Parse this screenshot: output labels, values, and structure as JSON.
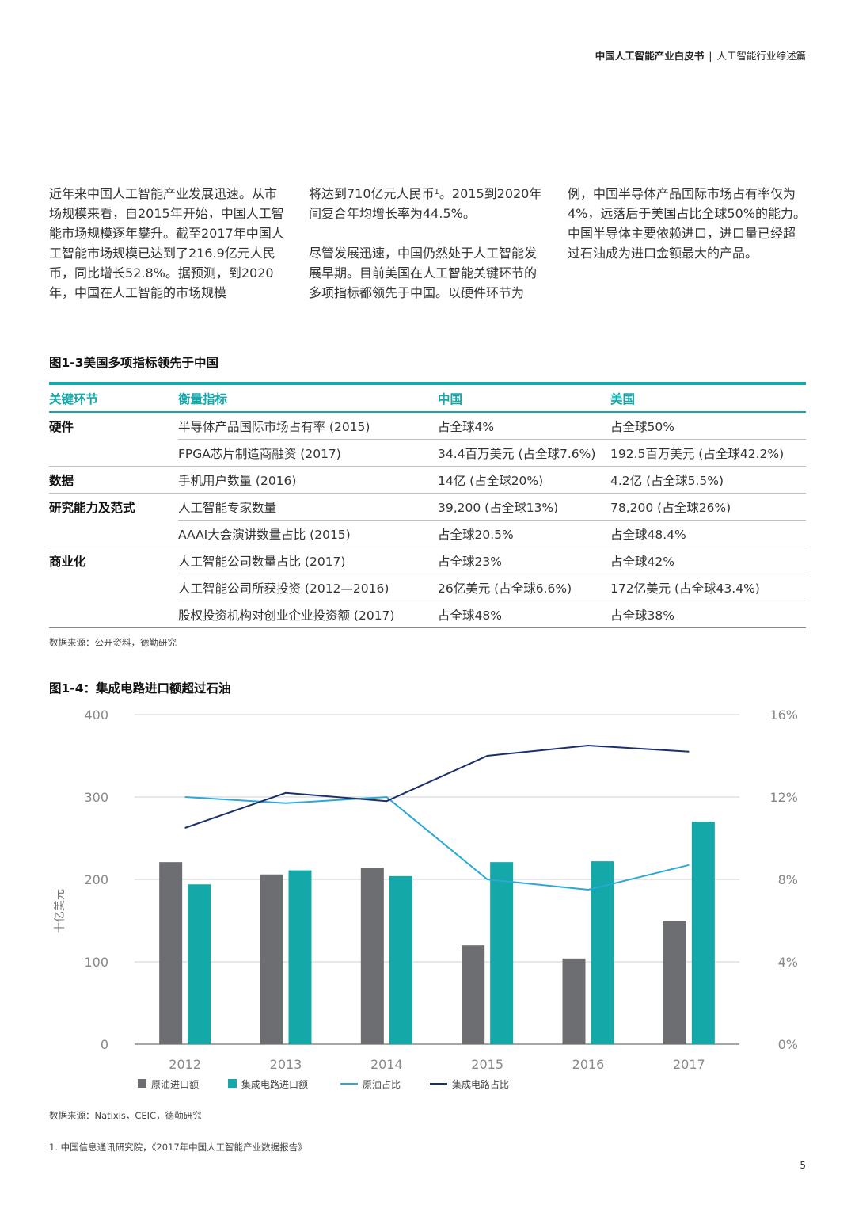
{
  "header": {
    "bold": "中国人工智能产业白皮书",
    "separator": "|",
    "section": "人工智能行业综述篇"
  },
  "body_text": {
    "col1": [
      "近年来中国人工智能产业发展迅速。从市场规模来看，自2015年开始，中国人工智能市场规模逐年攀升。截至2017年中国人工智能市场规模已达到了216.9亿元人民币，同比增长52.8%。据预测，到2020年，中国在人工智能的市场规模"
    ],
    "col2_p1_pre": "将达到710亿元人民币",
    "col2_p1_sup": "1",
    "col2_p1_post": "。2015到2020年间复合年均增长率为44.5%。",
    "col2_p2": "尽管发展迅速，中国仍然处于人工智能发展早期。目前美国在人工智能关键环节的多项指标都领先于中国。以硬件环节为",
    "col3": "例，中国半导体产品国际市场占有率仅为4%，远落后于美国占比全球50%的能力。中国半导体主要依赖进口，进口量已经超过石油成为进口金额最大的产品。"
  },
  "table_figure": {
    "title": "图1-3美国多项指标领先于中国",
    "headers": [
      "关键环节",
      "衡量指标",
      "中国",
      "美国"
    ],
    "rows": [
      {
        "category": "硬件",
        "metric": "半导体产品国际市场占有率 (2015)",
        "china": "占全球4%",
        "usa": "占全球50%"
      },
      {
        "category": "",
        "metric": "FPGA芯片制造商融资 (2017)",
        "china": "34.4百万美元 (占全球7.6%)",
        "usa": "192.5百万美元 (占全球42.2%)"
      },
      {
        "category": "数据",
        "metric": "手机用户数量 (2016)",
        "china": "14亿 (占全球20%)",
        "usa": "4.2亿 (占全球5.5%)"
      },
      {
        "category": "研究能力及范式",
        "metric": "人工智能专家数量",
        "china": "39,200 (占全球13%)",
        "usa": "78,200 (占全球26%)"
      },
      {
        "category": "",
        "metric": "AAAI大会演讲数量占比 (2015)",
        "china": "占全球20.5%",
        "usa": "占全球48.4%"
      },
      {
        "category": "商业化",
        "metric": "人工智能公司数量占比 (2017)",
        "china": "占全球23%",
        "usa": "占全球42%"
      },
      {
        "category": "",
        "metric": "人工智能公司所获投资 (2012—2016)",
        "china": "26亿美元 (占全球6.6%)",
        "usa": "172亿美元 (占全球43.4%)"
      },
      {
        "category": "",
        "metric": "股权投资机构对创业企业投资额 (2017)",
        "china": "占全球48%",
        "usa": "占全球38%"
      }
    ],
    "source": "数据来源：公开资料，德勤研究"
  },
  "chart_data": {
    "type": "bar",
    "title": "图1-4：集成电路进口额超过石油",
    "categories": [
      "2012",
      "2013",
      "2014",
      "2015",
      "2016",
      "2017"
    ],
    "ylabel": "十亿美元",
    "ylim": [
      0,
      400
    ],
    "yticks": [
      "0",
      "100",
      "200",
      "300",
      "400"
    ],
    "y2lim": [
      0,
      16
    ],
    "y2ticks": [
      "0%",
      "4%",
      "8%",
      "12%",
      "16%"
    ],
    "series": [
      {
        "name": "原油进口额",
        "kind": "bar",
        "axis": "left",
        "color": "#6d6e71",
        "values": [
          221,
          206,
          214,
          120,
          104,
          150
        ]
      },
      {
        "name": "集成电路进口额",
        "kind": "bar",
        "axis": "left",
        "color": "#14a8a8",
        "values": [
          194,
          211,
          204,
          221,
          222,
          270
        ]
      },
      {
        "name": "原油占比",
        "kind": "line",
        "axis": "right",
        "color": "#2aa8d6",
        "values": [
          12.0,
          11.7,
          12.0,
          8.0,
          7.5,
          8.7
        ]
      },
      {
        "name": "集成电路占比",
        "kind": "line",
        "axis": "right",
        "color": "#1a2f6b",
        "values": [
          10.5,
          12.2,
          11.8,
          14.0,
          14.5,
          14.2
        ]
      }
    ],
    "source": "数据来源：Natixis，CEIC，德勤研究"
  },
  "footnote": "1. 中国信息通讯研究院，《2017年中国人工智能产业数据报告》",
  "page_number": "5",
  "colors": {
    "accent": "#14a8a8",
    "grey": "#6d6e71",
    "navy": "#1a2f6b",
    "light_blue": "#2aa8d6"
  }
}
